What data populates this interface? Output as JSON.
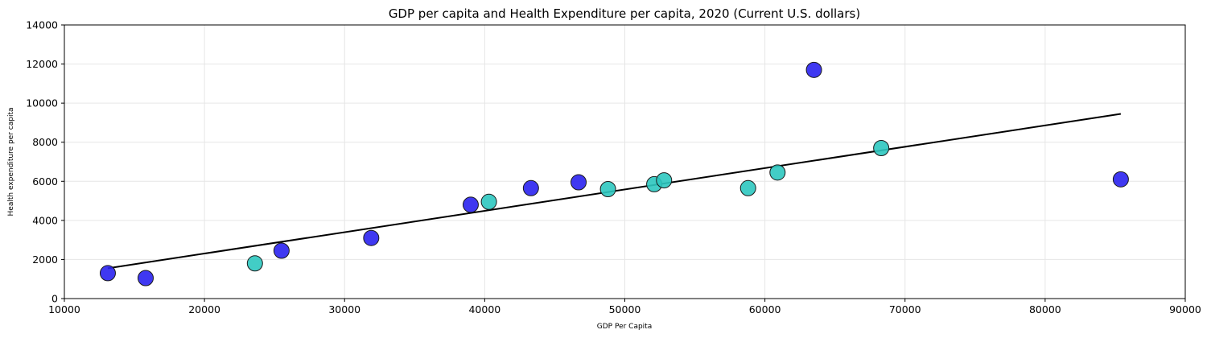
{
  "chart_data": {
    "type": "scatter",
    "title": "GDP per capita and Health Expenditure per capita, 2020 (Current U.S. dollars)",
    "xlabel": "GDP Per Capita",
    "ylabel": "Health expenditure per capita",
    "xlim": [
      10000,
      90000
    ],
    "ylim": [
      0,
      14000
    ],
    "xticks": [
      10000,
      20000,
      30000,
      40000,
      50000,
      60000,
      70000,
      80000,
      90000
    ],
    "yticks": [
      0,
      2000,
      4000,
      6000,
      8000,
      10000,
      12000,
      14000
    ],
    "grid": true,
    "series": [
      {
        "color": "#2a22f0",
        "points": [
          {
            "x": 13100,
            "y": 1300
          },
          {
            "x": 15800,
            "y": 1050
          },
          {
            "x": 25500,
            "y": 2450
          },
          {
            "x": 31900,
            "y": 3100
          },
          {
            "x": 39000,
            "y": 4800
          },
          {
            "x": 43300,
            "y": 5650
          },
          {
            "x": 46700,
            "y": 5950
          },
          {
            "x": 63500,
            "y": 11700
          },
          {
            "x": 85400,
            "y": 6100
          }
        ]
      },
      {
        "color": "#2ec8c0",
        "points": [
          {
            "x": 23600,
            "y": 1800
          },
          {
            "x": 40300,
            "y": 4950
          },
          {
            "x": 48800,
            "y": 5600
          },
          {
            "x": 52100,
            "y": 5850
          },
          {
            "x": 52800,
            "y": 6050
          },
          {
            "x": 58800,
            "y": 5650
          },
          {
            "x": 60900,
            "y": 6450
          },
          {
            "x": 68300,
            "y": 7700
          }
        ]
      }
    ],
    "trendline": {
      "x": [
        13100,
        85400
      ],
      "y": [
        1550,
        9450
      ]
    }
  }
}
